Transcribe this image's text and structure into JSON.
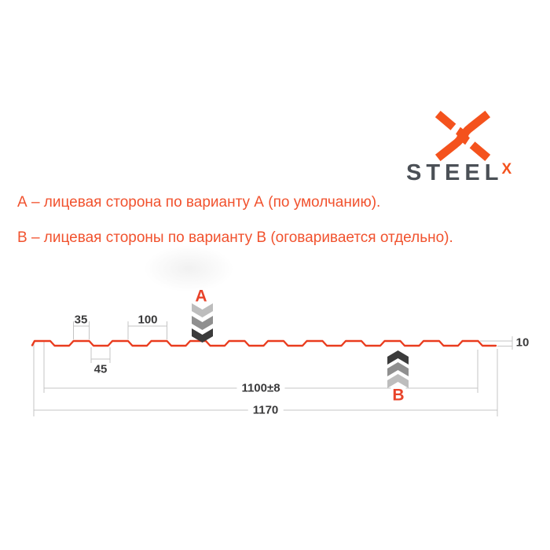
{
  "logo": {
    "wordmark": "STEEL",
    "superscript": "X"
  },
  "notes": {
    "a": "А – лицевая сторона по варианту А (по умолчанию).",
    "b": "В – лицевая стороны по варианту В (оговаривается отдельно)."
  },
  "diagram": {
    "marker_a": "А",
    "marker_b": "В",
    "dim_rib_top": "35",
    "dim_pitch": "100",
    "dim_rib_bottom": "45",
    "dim_working_width": "1100±8",
    "dim_overall_width": "1170",
    "dim_height": "10"
  },
  "colors": {
    "logo_orange": "#f4521d",
    "wordmark_gray": "#4b5056",
    "note_red": "#f1522e",
    "profile_red": "#e93c1e",
    "marker_red": "#e8432a",
    "dim_line_gray": "#c4c4c4",
    "dim_text_gray": "#3a3a3b",
    "chevron_light": "#bdbdbd",
    "chevron_mid": "#8f8f8f",
    "chevron_dark": "#3b3b3b"
  }
}
